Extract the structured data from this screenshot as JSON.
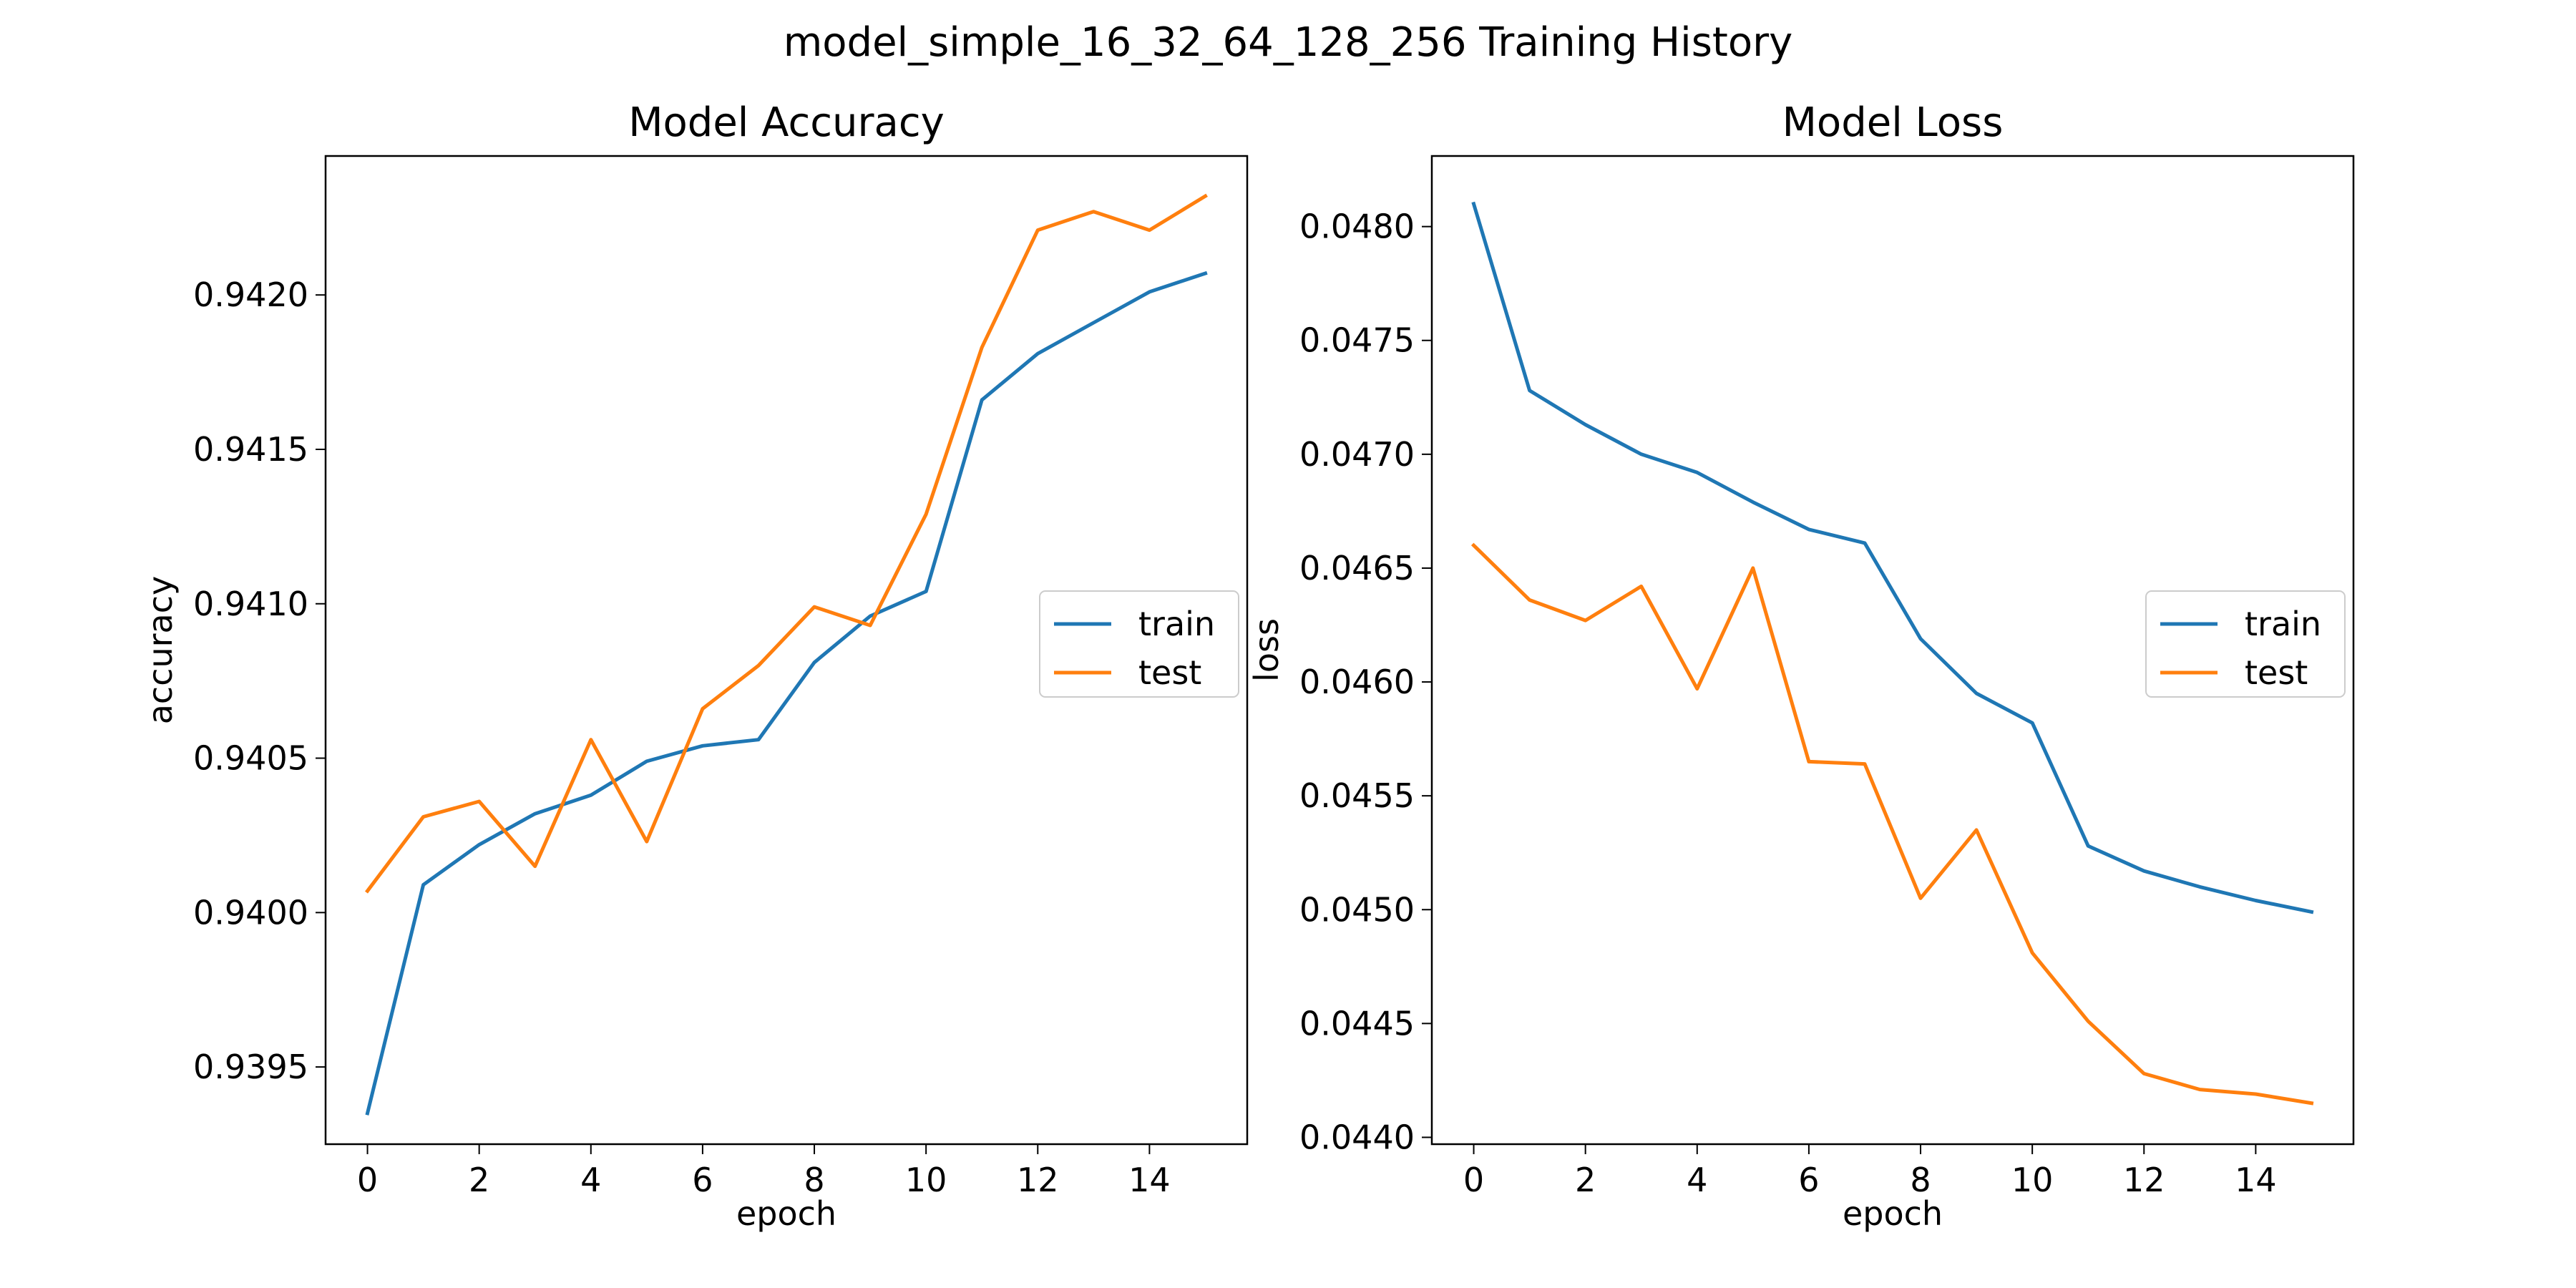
{
  "figure": {
    "title": "model_simple_16_32_64_128_256 Training History"
  },
  "chart_data": [
    {
      "type": "line",
      "title": "Model Accuracy",
      "xlabel": "epoch",
      "ylabel": "accuracy",
      "xlim": [
        -0.75,
        15.75
      ],
      "ylim": [
        0.93925,
        0.94245
      ],
      "xticks": [
        0,
        2,
        4,
        6,
        8,
        10,
        12,
        14
      ],
      "xtick_labels": [
        "0",
        "2",
        "4",
        "6",
        "8",
        "10",
        "12",
        "14"
      ],
      "yticks": [
        0.9395,
        0.94,
        0.9405,
        0.941,
        0.9415,
        0.942
      ],
      "ytick_labels": [
        "0.9395",
        "0.9400",
        "0.9405",
        "0.9410",
        "0.9415",
        "0.9420"
      ],
      "grid": false,
      "legend": "center right",
      "x": [
        0,
        1,
        2,
        3,
        4,
        5,
        6,
        7,
        8,
        9,
        10,
        11,
        12,
        13,
        14,
        15
      ],
      "series": [
        {
          "name": "train",
          "color": "#1f77b4",
          "values": [
            0.93935,
            0.94009,
            0.94022,
            0.94032,
            0.94038,
            0.94049,
            0.94054,
            0.94056,
            0.94081,
            0.94096,
            0.94104,
            0.94166,
            0.94181,
            0.94191,
            0.94201,
            0.94207
          ]
        },
        {
          "name": "test",
          "color": "#ff7f0e",
          "values": [
            0.94007,
            0.94031,
            0.94036,
            0.94015,
            0.94056,
            0.94023,
            0.94066,
            0.9408,
            0.94099,
            0.94093,
            0.94129,
            0.94183,
            0.94221,
            0.94227,
            0.94221,
            0.94232
          ]
        }
      ]
    },
    {
      "type": "line",
      "title": "Model Loss",
      "xlabel": "epoch",
      "ylabel": "loss",
      "xlim": [
        -0.75,
        15.75
      ],
      "ylim": [
        0.04397,
        0.04831
      ],
      "xticks": [
        0,
        2,
        4,
        6,
        8,
        10,
        12,
        14
      ],
      "xtick_labels": [
        "0",
        "2",
        "4",
        "6",
        "8",
        "10",
        "12",
        "14"
      ],
      "yticks": [
        0.044,
        0.0445,
        0.045,
        0.0455,
        0.046,
        0.0465,
        0.047,
        0.0475,
        0.048
      ],
      "ytick_labels": [
        "0.0440",
        "0.0445",
        "0.0450",
        "0.0455",
        "0.0460",
        "0.0465",
        "0.0470",
        "0.0475",
        "0.0480"
      ],
      "grid": false,
      "legend": "center right",
      "x": [
        0,
        1,
        2,
        3,
        4,
        5,
        6,
        7,
        8,
        9,
        10,
        11,
        12,
        13,
        14,
        15
      ],
      "series": [
        {
          "name": "train",
          "color": "#1f77b4",
          "values": [
            0.0481,
            0.04728,
            0.04713,
            0.047,
            0.04692,
            0.04679,
            0.04667,
            0.04661,
            0.04619,
            0.04595,
            0.04582,
            0.04528,
            0.04517,
            0.0451,
            0.04504,
            0.04499
          ]
        },
        {
          "name": "test",
          "color": "#ff7f0e",
          "values": [
            0.0466,
            0.04636,
            0.04627,
            0.04642,
            0.04597,
            0.0465,
            0.04565,
            0.04564,
            0.04505,
            0.04535,
            0.04481,
            0.04451,
            0.04428,
            0.04421,
            0.04419,
            0.04415
          ]
        }
      ]
    }
  ]
}
